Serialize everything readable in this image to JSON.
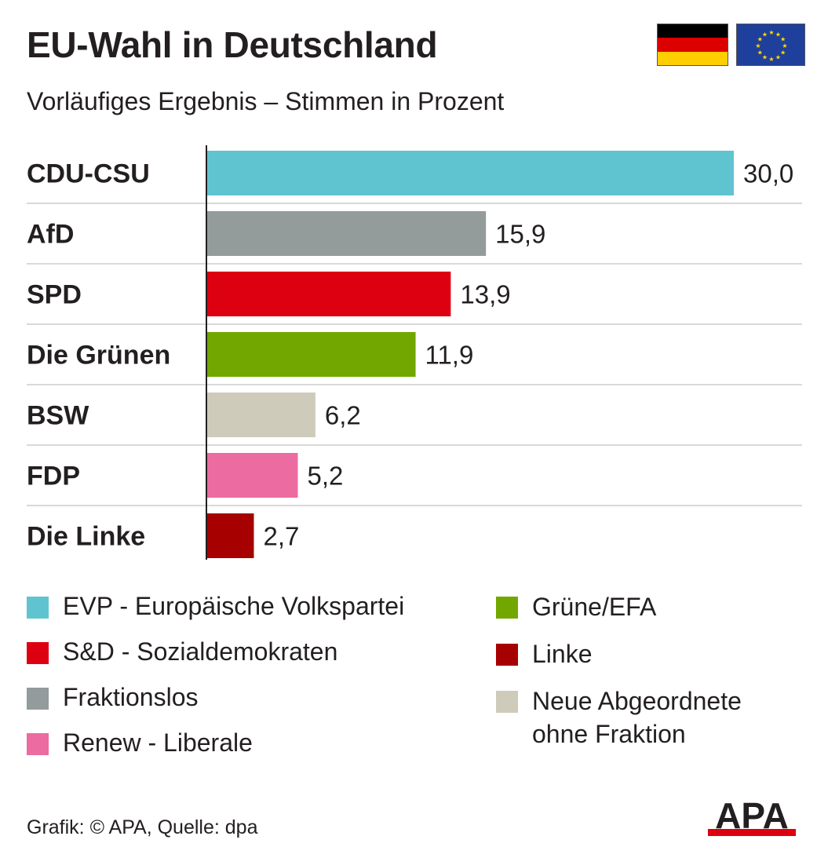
{
  "header": {
    "title": "EU-Wahl in Deutschland",
    "subtitle": "Vorläufiges Ergebnis – Stimmen in Prozent"
  },
  "flags": {
    "germany": {
      "icon": "germany-flag-icon",
      "colors": [
        "#000000",
        "#dd0000",
        "#ffce00"
      ]
    },
    "eu": {
      "icon": "eu-flag-icon",
      "colors": [
        "#1f3f9c",
        "#ffdd00"
      ]
    }
  },
  "chart_data": {
    "type": "bar",
    "orientation": "horizontal",
    "title": "EU-Wahl in Deutschland",
    "subtitle": "Vorläufiges Ergebnis – Stimmen in Prozent",
    "xlim": [
      0,
      30
    ],
    "grid": false,
    "legend_position": "bottom",
    "categories": [
      "CDU-CSU",
      "AfD",
      "SPD",
      "Die Grünen",
      "BSW",
      "FDP",
      "Die Linke"
    ],
    "values": [
      30.0,
      15.9,
      13.9,
      11.9,
      6.2,
      5.2,
      2.7
    ],
    "value_labels": [
      "30,0",
      "15,9",
      "13,9",
      "11,9",
      "6,2",
      "5,2",
      "2,7"
    ],
    "colors": [
      "#5fc4d0",
      "#939b9b",
      "#dd0011",
      "#72a700",
      "#cfcbba",
      "#ec6ba0",
      "#a60000"
    ]
  },
  "legend": {
    "column1": [
      {
        "label": "EVP - Europäische Volkspartei",
        "color": "#5fc4d0"
      },
      {
        "label": "S&D - Sozialdemokraten",
        "color": "#dd0011"
      },
      {
        "label": "Fraktionslos",
        "color": "#939b9b"
      },
      {
        "label": "Renew - Liberale",
        "color": "#ec6ba0"
      }
    ],
    "column2": [
      {
        "label": "Grüne/EFA",
        "color": "#72a700"
      },
      {
        "label": "Linke",
        "color": "#a60000"
      },
      {
        "label": "Neue Abgeordnete ohne Fraktion",
        "color": "#cfcbba"
      }
    ]
  },
  "footer": {
    "credit": "Grafik: © APA, Quelle: dpa",
    "logo_text": "APA",
    "logo_colors": [
      "#231f20",
      "#dd0011"
    ]
  }
}
